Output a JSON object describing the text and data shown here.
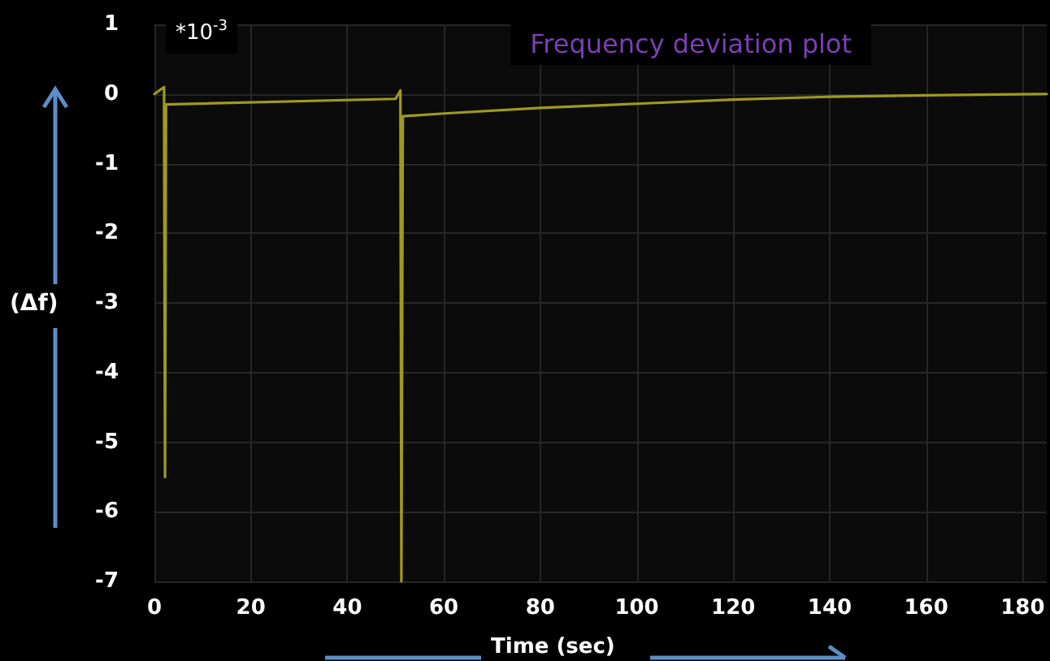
{
  "chart_data": {
    "type": "line",
    "title": "Frequency deviation plot",
    "xlabel": "Time (sec)",
    "ylabel": "(Δf)",
    "annotations": [
      "*10$^{-3}$"
    ],
    "x": [
      0,
      2,
      2.2,
      2.4,
      50,
      51,
      51.2,
      51.5,
      60,
      80,
      100,
      120,
      140,
      160,
      185
    ],
    "series": [
      {
        "color": "#a09a1a",
        "values": [
          0,
          0.1,
          -5.5,
          -0.15,
          -0.07,
          0.05,
          -7,
          -0.32,
          -0.28,
          -0.2,
          -0.14,
          -0.08,
          -0.04,
          -0.02,
          0
        ]
      }
    ],
    "xlim": [
      0,
      185
    ],
    "xticks": [
      0,
      20,
      40,
      60,
      80,
      100,
      120,
      140,
      160,
      180
    ],
    "ylim": [
      -7,
      1
    ],
    "yticks": [
      -7,
      -6,
      -5,
      -4,
      -3,
      -2,
      -1,
      0,
      1
    ],
    "grid": true,
    "marker": "none",
    "line_style": "solid"
  }
}
